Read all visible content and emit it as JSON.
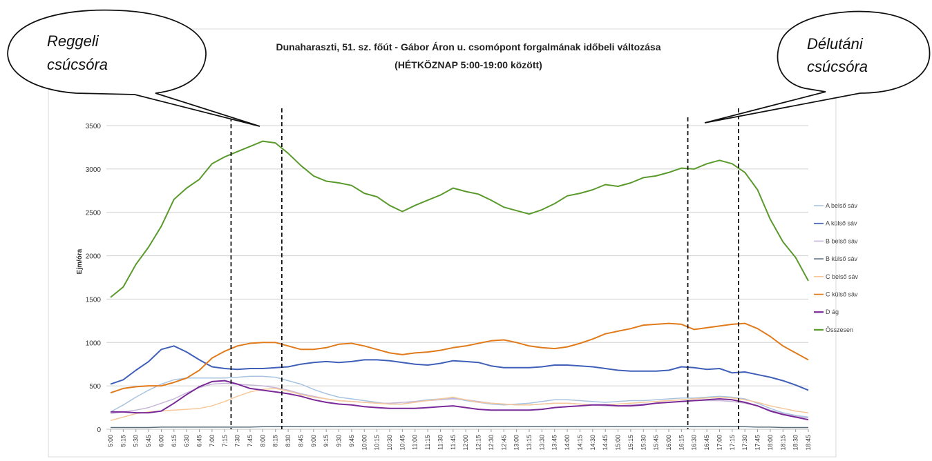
{
  "chart_data": {
    "type": "line",
    "title_line1": "Dunaharaszti, 51. sz. főút - Gábor Áron u. csomópont forgalmának időbeli változása",
    "title_line2": "(HÉTKÖZNAP 5:00-19:00 között)",
    "ylabel": "Ejm/óra",
    "xlabel": "",
    "ylim": [
      0,
      3500
    ],
    "yticks": [
      0,
      500,
      1000,
      1500,
      2000,
      2500,
      3000,
      3500
    ],
    "grid": true,
    "legend_position": "right",
    "categories": [
      "5:00",
      "5:15",
      "5:30",
      "5:45",
      "6:00",
      "6:15",
      "6:30",
      "6:45",
      "7:00",
      "7:15",
      "7:30",
      "7:45",
      "8:00",
      "8:15",
      "8:30",
      "8:45",
      "9:00",
      "9:15",
      "9:30",
      "9:45",
      "10:00",
      "10:15",
      "10:30",
      "10:45",
      "11:00",
      "11:15",
      "11:30",
      "11:45",
      "12:00",
      "12:15",
      "12:30",
      "12:45",
      "13:00",
      "13:15",
      "13:30",
      "13:45",
      "14:00",
      "14:15",
      "14:30",
      "14:45",
      "15:00",
      "15:15",
      "15:30",
      "15:45",
      "16:00",
      "16:15",
      "16:30",
      "16:45",
      "17:00",
      "17:15",
      "17:30",
      "17:45",
      "18:00",
      "18:15",
      "18:30",
      "18:45"
    ],
    "series": [
      {
        "name": "A belső sáv",
        "color": "#a8c4e0",
        "values": [
          200,
          280,
          370,
          450,
          520,
          570,
          590,
          590,
          590,
          590,
          600,
          610,
          610,
          600,
          560,
          520,
          460,
          410,
          370,
          350,
          330,
          310,
          290,
          290,
          320,
          340,
          350,
          360,
          330,
          310,
          290,
          280,
          290,
          300,
          320,
          340,
          340,
          330,
          320,
          310,
          320,
          330,
          330,
          340,
          350,
          360,
          360,
          370,
          380,
          370,
          350,
          300,
          240,
          190,
          160,
          140
        ]
      },
      {
        "name": "A külső sáv",
        "color": "#3f5fb8",
        "values": [
          520,
          570,
          680,
          780,
          920,
          960,
          890,
          800,
          720,
          700,
          690,
          700,
          700,
          710,
          720,
          750,
          770,
          780,
          770,
          780,
          800,
          800,
          790,
          770,
          750,
          740,
          760,
          790,
          780,
          770,
          730,
          710,
          710,
          710,
          720,
          740,
          740,
          730,
          720,
          700,
          680,
          670,
          670,
          670,
          680,
          720,
          710,
          690,
          700,
          650,
          660,
          630,
          600,
          560,
          510,
          450
        ]
      },
      {
        "name": "B belső sáv",
        "color": "#c7b8d8",
        "values": [
          180,
          200,
          220,
          250,
          300,
          350,
          420,
          480,
          520,
          530,
          520,
          510,
          500,
          480,
          450,
          410,
          380,
          350,
          330,
          320,
          310,
          300,
          300,
          310,
          320,
          330,
          340,
          350,
          340,
          320,
          300,
          290,
          280,
          280,
          290,
          300,
          300,
          290,
          280,
          270,
          270,
          280,
          290,
          300,
          310,
          320,
          330,
          330,
          330,
          320,
          300,
          270,
          220,
          180,
          150,
          130
        ]
      },
      {
        "name": "B külső sáv",
        "color": "#5a6e7e",
        "values": [
          20,
          20,
          20,
          20,
          25,
          25,
          25,
          25,
          25,
          25,
          25,
          25,
          30,
          30,
          30,
          30,
          30,
          30,
          30,
          30,
          30,
          30,
          30,
          30,
          30,
          30,
          30,
          30,
          30,
          30,
          30,
          30,
          30,
          30,
          30,
          30,
          30,
          30,
          30,
          30,
          30,
          30,
          30,
          30,
          30,
          30,
          30,
          30,
          30,
          30,
          30,
          25,
          25,
          20,
          20,
          20
        ]
      },
      {
        "name": "C belső sáv",
        "color": "#f5c89a",
        "values": [
          100,
          140,
          180,
          200,
          210,
          220,
          230,
          240,
          270,
          320,
          380,
          430,
          460,
          470,
          440,
          400,
          370,
          350,
          330,
          320,
          310,
          300,
          290,
          290,
          310,
          330,
          350,
          370,
          340,
          310,
          300,
          290,
          280,
          280,
          290,
          300,
          300,
          290,
          280,
          280,
          290,
          300,
          310,
          320,
          330,
          340,
          350,
          360,
          370,
          360,
          340,
          310,
          270,
          240,
          210,
          190
        ]
      },
      {
        "name": "C külső sáv",
        "color": "#e07a1a",
        "values": [
          420,
          470,
          490,
          500,
          500,
          540,
          590,
          680,
          820,
          900,
          960,
          990,
          1000,
          1000,
          960,
          920,
          920,
          940,
          980,
          990,
          960,
          920,
          880,
          860,
          880,
          890,
          910,
          940,
          960,
          990,
          1020,
          1030,
          1000,
          960,
          940,
          930,
          950,
          990,
          1040,
          1100,
          1130,
          1160,
          1200,
          1210,
          1220,
          1210,
          1150,
          1170,
          1190,
          1210,
          1220,
          1160,
          1070,
          960,
          880,
          800
        ]
      },
      {
        "name": "D ág",
        "color": "#7a2a98",
        "values": [
          200,
          200,
          190,
          190,
          210,
          300,
          400,
          490,
          550,
          560,
          520,
          470,
          450,
          430,
          410,
          380,
          340,
          310,
          290,
          280,
          260,
          250,
          240,
          240,
          240,
          250,
          260,
          270,
          250,
          230,
          220,
          220,
          220,
          220,
          230,
          250,
          260,
          270,
          280,
          280,
          270,
          270,
          280,
          300,
          310,
          320,
          330,
          340,
          350,
          340,
          310,
          270,
          210,
          170,
          140,
          110
        ]
      },
      {
        "name": "Összesen",
        "color": "#5a9a2c",
        "values": [
          1520,
          1640,
          1900,
          2100,
          2340,
          2650,
          2780,
          2880,
          3060,
          3140,
          3200,
          3260,
          3320,
          3300,
          3180,
          3040,
          2920,
          2860,
          2840,
          2810,
          2720,
          2680,
          2580,
          2510,
          2580,
          2640,
          2700,
          2780,
          2740,
          2710,
          2640,
          2560,
          2520,
          2480,
          2530,
          2600,
          2690,
          2720,
          2760,
          2820,
          2800,
          2840,
          2900,
          2920,
          2960,
          3010,
          3000,
          3060,
          3100,
          3060,
          2960,
          2760,
          2420,
          2160,
          1980,
          1710
        ]
      }
    ],
    "vlines_after_category": [
      "7:15",
      "8:15",
      "16:15",
      "17:15"
    ],
    "callouts": [
      {
        "line1": "Reggeli",
        "line2": "csúcsóra"
      },
      {
        "line1": "Délutáni",
        "line2": "csúcsóra"
      }
    ]
  }
}
